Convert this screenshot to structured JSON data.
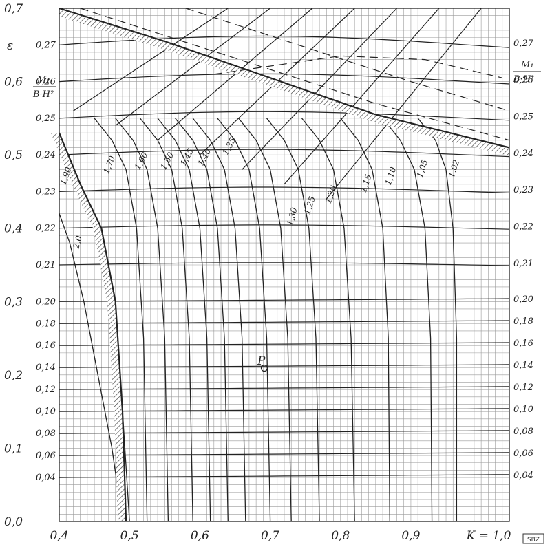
{
  "chart_data": {
    "type": "line",
    "x_axis": {
      "label": "K = 1,0",
      "range": [
        0.4,
        1.04
      ],
      "ticks": [
        "0,4",
        "0,5",
        "0,6",
        "0,7",
        "0,8",
        "0,9"
      ]
    },
    "left_axis": {
      "symbol": "ε",
      "range": [
        0.0,
        0.7
      ],
      "ticks": [
        "0,0",
        "0,1",
        "0,2",
        "0,3",
        "0,4",
        "0,5",
        "0,6",
        "0,7"
      ]
    },
    "moment_axis": {
      "label_top": "M₁",
      "label_bottom": "B·H²",
      "left_ticks": [
        "0,04",
        "0,06",
        "0,08",
        "0,10",
        "0,12",
        "0,14",
        "0,16",
        "0,18",
        "0,20",
        "0,21",
        "0,22",
        "0,23",
        "0,24",
        "0,25",
        "0,26",
        "0,27"
      ],
      "right_ticks": [
        "0,04",
        "0,06",
        "0,08",
        "0,10",
        "0,12",
        "0,14",
        "0,16",
        "0,18",
        "0,20",
        "0,21",
        "0,22",
        "0,23",
        "0,24",
        "0,25",
        "0,26",
        "0,27"
      ]
    },
    "k_curve_labels": [
      "2,0",
      "1,90",
      "1,70",
      "1,60",
      "1,50",
      "1,45",
      "1,40",
      "1,35",
      "1,30",
      "1,25",
      "1,20",
      "1,15",
      "1,10",
      "1,05",
      "1,02"
    ],
    "point_label": "P",
    "corner_stamp": "SBZ",
    "grid": true,
    "series": [
      {
        "k": "1,02",
        "x": [
          0.965,
          0.965,
          0.96,
          0.95,
          0.935,
          0.91
        ],
        "y": [
          0.0,
          0.25,
          0.4,
          0.48,
          0.52,
          0.55
        ]
      },
      {
        "k": "1,05",
        "x": [
          0.93,
          0.928,
          0.92,
          0.905,
          0.885,
          0.86
        ],
        "y": [
          0.0,
          0.25,
          0.4,
          0.48,
          0.52,
          0.55
        ]
      },
      {
        "k": "1,10",
        "x": [
          0.87,
          0.868,
          0.86,
          0.845,
          0.825,
          0.8
        ],
        "y": [
          0.0,
          0.25,
          0.4,
          0.48,
          0.52,
          0.55
        ]
      },
      {
        "k": "1,15",
        "x": [
          0.82,
          0.815,
          0.805,
          0.79,
          0.77,
          0.745
        ],
        "y": [
          0.0,
          0.25,
          0.4,
          0.48,
          0.52,
          0.55
        ]
      },
      {
        "k": "1,20",
        "x": [
          0.77,
          0.765,
          0.755,
          0.74,
          0.72,
          0.695
        ],
        "y": [
          0.0,
          0.25,
          0.4,
          0.48,
          0.52,
          0.55
        ]
      },
      {
        "k": "1,25",
        "x": [
          0.73,
          0.725,
          0.715,
          0.7,
          0.68,
          0.655
        ],
        "y": [
          0.0,
          0.25,
          0.4,
          0.48,
          0.52,
          0.55
        ]
      },
      {
        "k": "1,30",
        "x": [
          0.7,
          0.695,
          0.685,
          0.67,
          0.65,
          0.625
        ],
        "y": [
          0.0,
          0.25,
          0.4,
          0.48,
          0.52,
          0.55
        ]
      },
      {
        "k": "1,35",
        "x": [
          0.665,
          0.66,
          0.65,
          0.635,
          0.615,
          0.59
        ],
        "y": [
          0.0,
          0.25,
          0.4,
          0.48,
          0.52,
          0.55
        ]
      },
      {
        "k": "1,40",
        "x": [
          0.64,
          0.635,
          0.625,
          0.61,
          0.59,
          0.565
        ],
        "y": [
          0.0,
          0.25,
          0.4,
          0.48,
          0.52,
          0.55
        ]
      },
      {
        "k": "1,45",
        "x": [
          0.615,
          0.61,
          0.6,
          0.585,
          0.565,
          0.54
        ],
        "y": [
          0.0,
          0.25,
          0.4,
          0.48,
          0.52,
          0.55
        ]
      },
      {
        "k": "1,50",
        "x": [
          0.59,
          0.585,
          0.575,
          0.56,
          0.54,
          0.515
        ],
        "y": [
          0.0,
          0.25,
          0.4,
          0.48,
          0.52,
          0.55
        ]
      },
      {
        "k": "1,60",
        "x": [
          0.555,
          0.55,
          0.54,
          0.525,
          0.505,
          0.48
        ],
        "y": [
          0.0,
          0.25,
          0.4,
          0.48,
          0.52,
          0.55
        ]
      },
      {
        "k": "1,70",
        "x": [
          0.525,
          0.52,
          0.51,
          0.495,
          0.475,
          0.45
        ],
        "y": [
          0.0,
          0.25,
          0.4,
          0.48,
          0.52,
          0.55
        ]
      },
      {
        "k": "1,90",
        "x": [
          0.5,
          0.49,
          0.475,
          0.455,
          0.43,
          0.405
        ],
        "y": [
          0.0,
          0.15,
          0.3,
          0.4,
          0.46,
          0.5
        ]
      },
      {
        "k": "2,0",
        "x": [
          0.49,
          0.475,
          0.455,
          0.435,
          0.415,
          0.4
        ],
        "y": [
          0.0,
          0.1,
          0.2,
          0.3,
          0.38,
          0.42
        ]
      }
    ]
  }
}
